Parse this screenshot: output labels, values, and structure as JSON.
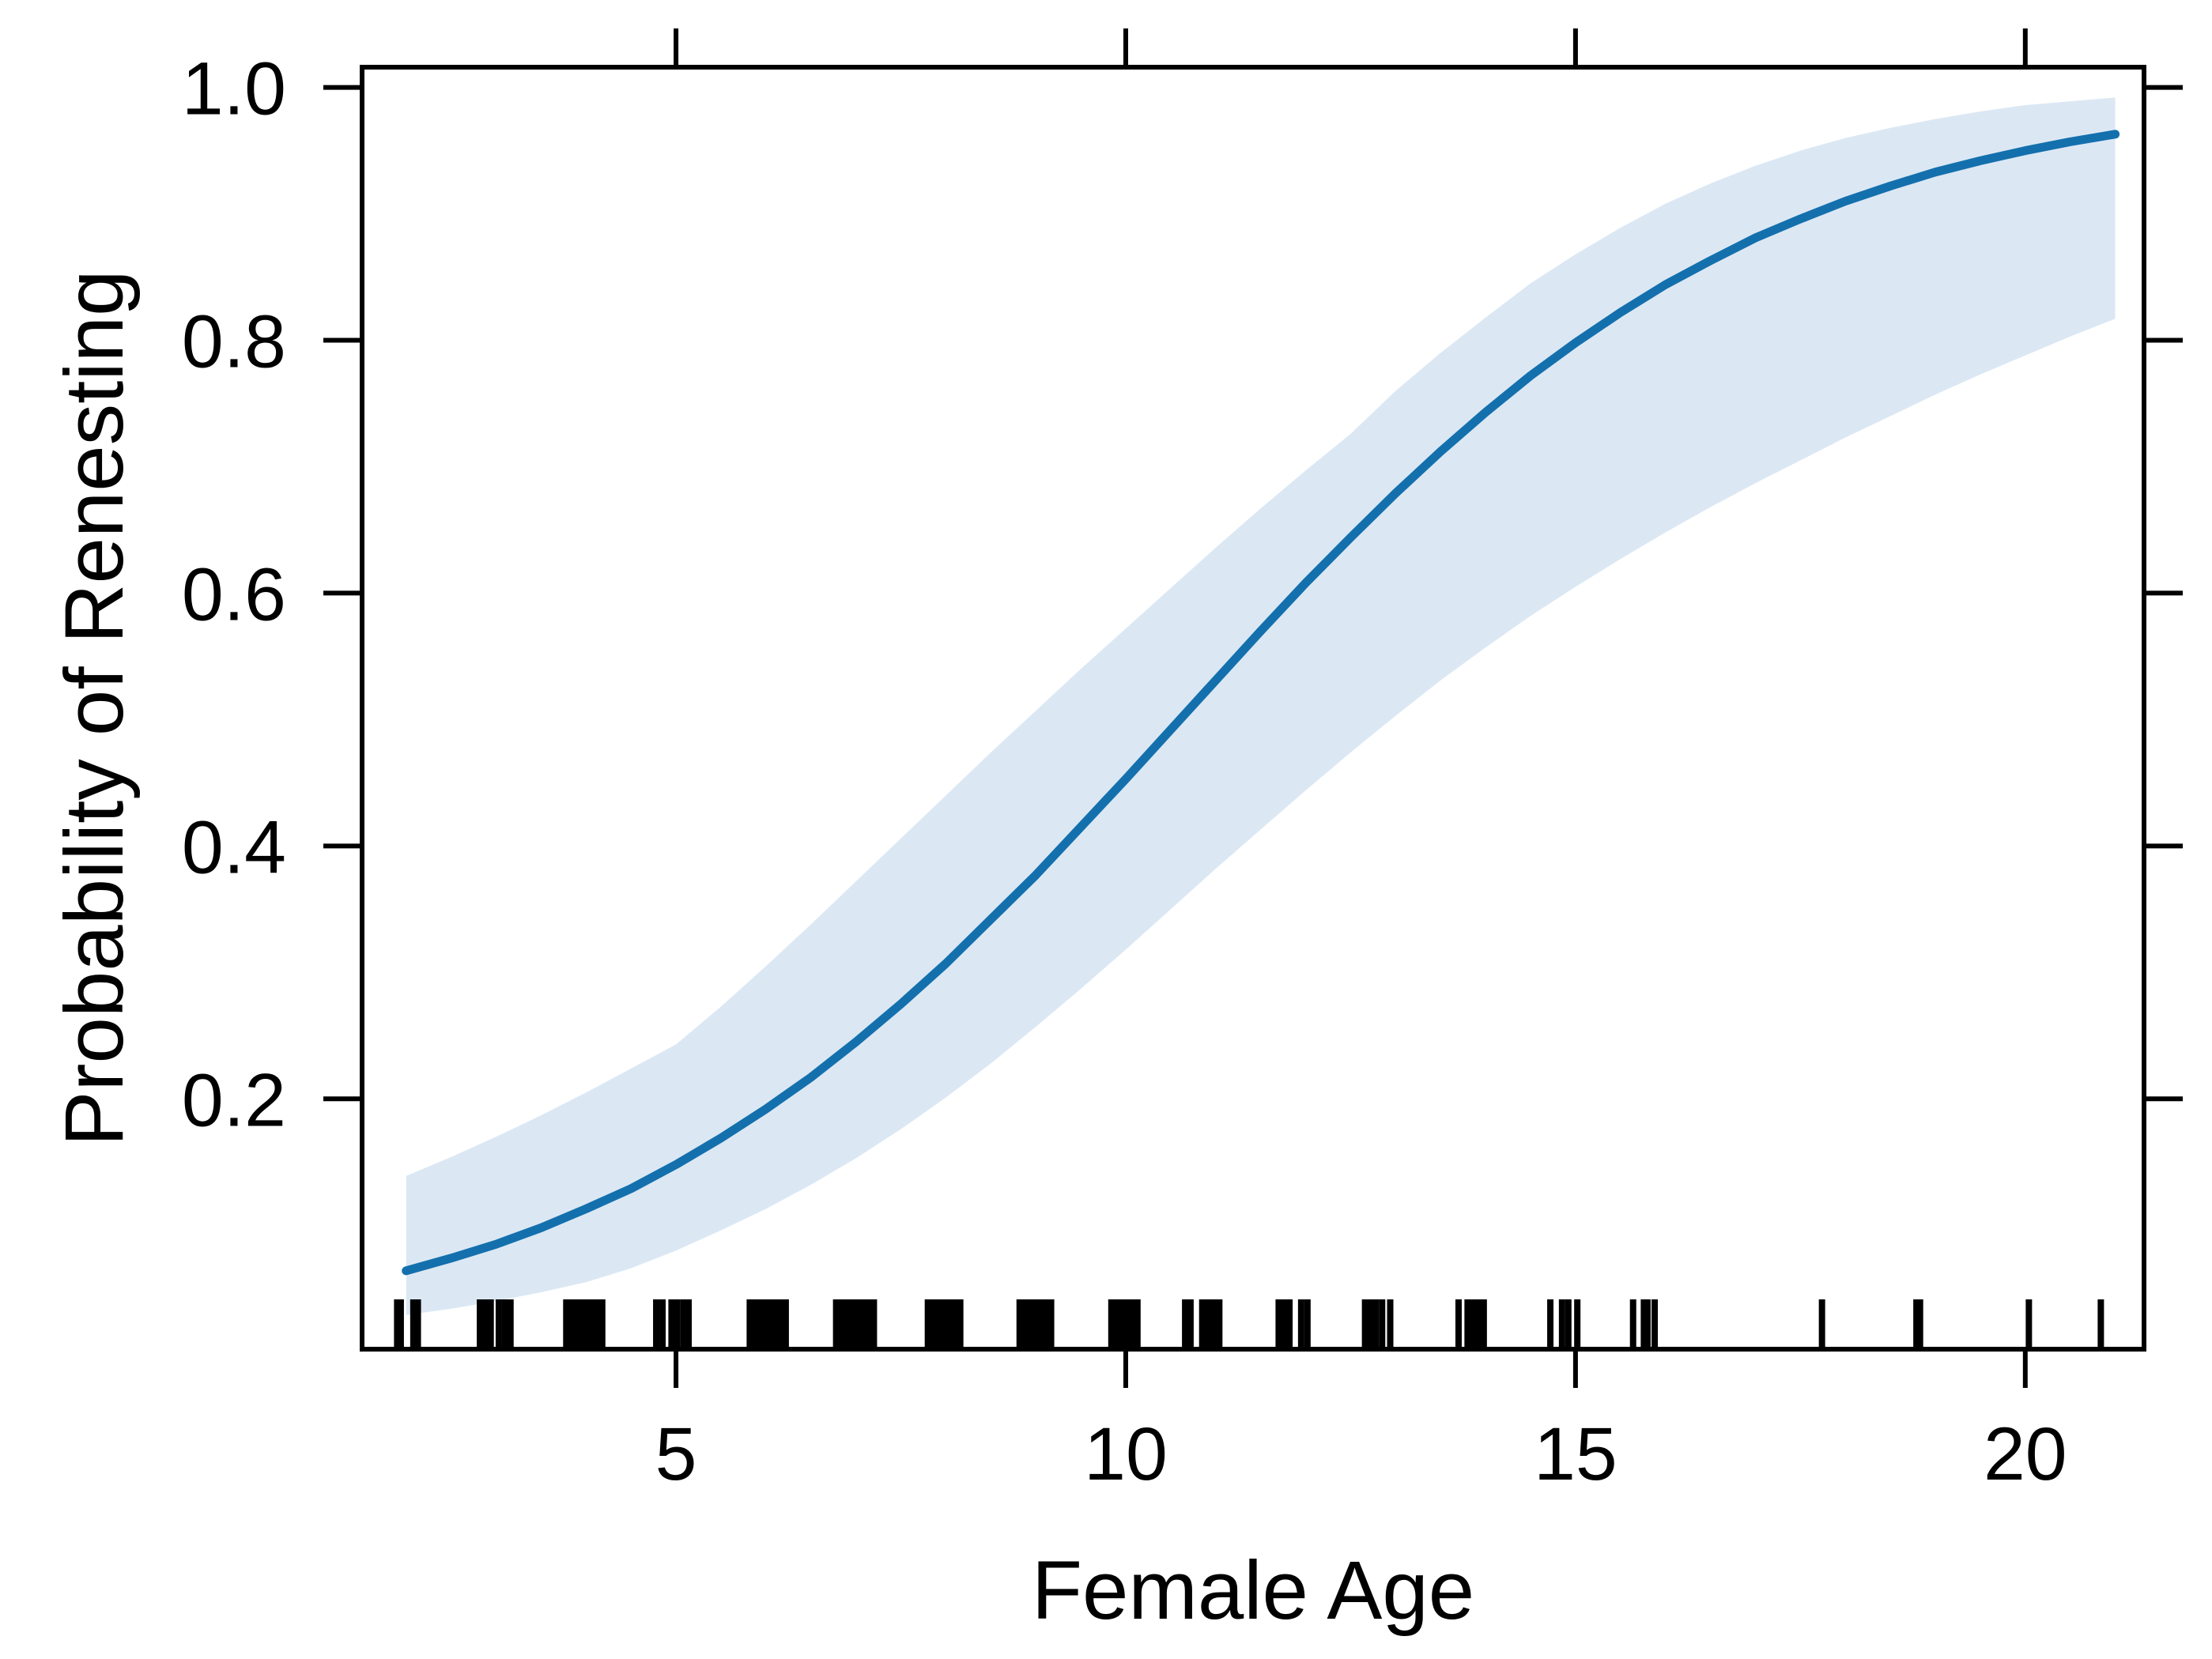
{
  "chart_data": {
    "type": "line",
    "title": "",
    "xlabel": "Female Age",
    "ylabel": "Probability of Renesting",
    "x_ticks": [
      5,
      10,
      15,
      20
    ],
    "x_tick_labels": [
      "5",
      "10",
      "15",
      "20"
    ],
    "y_ticks": [
      0.2,
      0.4,
      0.6,
      0.8,
      1.0
    ],
    "y_tick_labels": [
      "0.2",
      "0.4",
      "0.6",
      "0.8",
      "1.0"
    ],
    "xlim": [
      1.51,
      21.32
    ],
    "ylim": [
      0.002,
      1.016
    ],
    "grid": false,
    "legend": "none",
    "axis_style": "box-with-outward-ticks-all-sides",
    "x": [
      2,
      2.5,
      3,
      3.5,
      4,
      4.5,
      5,
      5.5,
      6,
      6.5,
      7,
      7.5,
      8,
      8.5,
      9,
      9.5,
      10,
      10.5,
      11,
      11.5,
      12,
      12.5,
      13,
      13.5,
      14,
      14.5,
      15,
      15.5,
      16,
      16.5,
      17,
      17.5,
      18,
      18.5,
      19,
      19.5,
      20,
      20.5,
      21
    ],
    "series": [
      {
        "name": "predicted probability (logistic fit)",
        "role": "mean",
        "values": [
          0.064,
          0.074,
          0.085,
          0.098,
          0.113,
          0.129,
          0.148,
          0.169,
          0.192,
          0.217,
          0.245,
          0.275,
          0.307,
          0.342,
          0.377,
          0.415,
          0.453,
          0.492,
          0.531,
          0.57,
          0.608,
          0.644,
          0.679,
          0.712,
          0.743,
          0.772,
          0.798,
          0.822,
          0.844,
          0.863,
          0.881,
          0.896,
          0.91,
          0.922,
          0.933,
          0.942,
          0.95,
          0.957,
          0.963
        ]
      },
      {
        "name": "confidence band upper",
        "role": "ci_upper",
        "values": [
          0.139,
          0.154,
          0.17,
          0.187,
          0.205,
          0.224,
          0.243,
          0.273,
          0.305,
          0.338,
          0.372,
          0.406,
          0.44,
          0.474,
          0.507,
          0.54,
          0.572,
          0.604,
          0.636,
          0.667,
          0.697,
          0.726,
          0.76,
          0.79,
          0.818,
          0.845,
          0.868,
          0.889,
          0.908,
          0.924,
          0.938,
          0.95,
          0.96,
          0.968,
          0.975,
          0.981,
          0.986,
          0.989,
          0.992
        ]
      },
      {
        "name": "confidence band lower",
        "role": "ci_lower",
        "values": [
          0.029,
          0.034,
          0.04,
          0.047,
          0.055,
          0.066,
          0.08,
          0.096,
          0.113,
          0.132,
          0.153,
          0.176,
          0.201,
          0.228,
          0.257,
          0.287,
          0.318,
          0.35,
          0.382,
          0.413,
          0.444,
          0.474,
          0.503,
          0.531,
          0.557,
          0.582,
          0.605,
          0.627,
          0.648,
          0.668,
          0.687,
          0.705,
          0.723,
          0.74,
          0.757,
          0.773,
          0.788,
          0.803,
          0.817
        ]
      }
    ],
    "rug_x": [
      1.9,
      1.94,
      2.08,
      2.13,
      2.82,
      2.88,
      2.94,
      3.03,
      3.1,
      3.16,
      3.78,
      3.83,
      3.88,
      3.93,
      3.98,
      4.03,
      4.08,
      4.13,
      4.18,
      4.78,
      4.85,
      4.95,
      5.01,
      5.08,
      5.14,
      5.82,
      5.88,
      5.94,
      6.0,
      6.06,
      6.12,
      6.18,
      6.22,
      6.78,
      6.84,
      6.9,
      6.96,
      7.02,
      7.08,
      7.14,
      7.2,
      7.8,
      7.86,
      7.92,
      7.98,
      8.04,
      8.1,
      8.16,
      8.82,
      8.88,
      8.94,
      9.0,
      9.06,
      9.12,
      9.17,
      9.84,
      9.9,
      9.96,
      10.02,
      10.08,
      10.13,
      10.66,
      10.72,
      10.85,
      10.91,
      10.98,
      11.04,
      11.7,
      11.76,
      11.82,
      11.95,
      12.02,
      12.66,
      12.72,
      12.78,
      12.85,
      12.94,
      13.7,
      13.8,
      13.86,
      13.92,
      13.98,
      14.72,
      14.85,
      14.92,
      15.02,
      15.64,
      15.76,
      15.8,
      15.88,
      17.74,
      18.79,
      18.83,
      20.04,
      20.84
    ],
    "colors": {
      "line": "#1470ad",
      "band": "#dbe8f4",
      "axis": "#000000",
      "rug": "#000000",
      "background": "#ffffff"
    }
  }
}
